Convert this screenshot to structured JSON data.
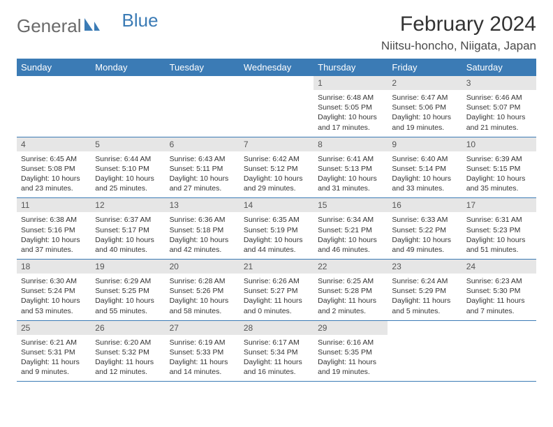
{
  "logo": {
    "text_general": "General",
    "text_blue": "Blue"
  },
  "header": {
    "month": "February 2024",
    "location": "Niitsu-honcho, Niigata, Japan"
  },
  "weekdays": [
    "Sunday",
    "Monday",
    "Tuesday",
    "Wednesday",
    "Thursday",
    "Friday",
    "Saturday"
  ],
  "colors": {
    "header_bg": "#3b7bb5",
    "header_text": "#ffffff",
    "daynum_bg": "#e6e6e6",
    "row_divider": "#3b7bb5",
    "logo_gray": "#6a6a6a",
    "logo_blue": "#3b7bb5"
  },
  "layout": {
    "first_weekday_index": 4,
    "days_in_month": 29
  },
  "days": {
    "1": {
      "sunrise": "6:48 AM",
      "sunset": "5:05 PM",
      "daylight": "10 hours and 17 minutes."
    },
    "2": {
      "sunrise": "6:47 AM",
      "sunset": "5:06 PM",
      "daylight": "10 hours and 19 minutes."
    },
    "3": {
      "sunrise": "6:46 AM",
      "sunset": "5:07 PM",
      "daylight": "10 hours and 21 minutes."
    },
    "4": {
      "sunrise": "6:45 AM",
      "sunset": "5:08 PM",
      "daylight": "10 hours and 23 minutes."
    },
    "5": {
      "sunrise": "6:44 AM",
      "sunset": "5:10 PM",
      "daylight": "10 hours and 25 minutes."
    },
    "6": {
      "sunrise": "6:43 AM",
      "sunset": "5:11 PM",
      "daylight": "10 hours and 27 minutes."
    },
    "7": {
      "sunrise": "6:42 AM",
      "sunset": "5:12 PM",
      "daylight": "10 hours and 29 minutes."
    },
    "8": {
      "sunrise": "6:41 AM",
      "sunset": "5:13 PM",
      "daylight": "10 hours and 31 minutes."
    },
    "9": {
      "sunrise": "6:40 AM",
      "sunset": "5:14 PM",
      "daylight": "10 hours and 33 minutes."
    },
    "10": {
      "sunrise": "6:39 AM",
      "sunset": "5:15 PM",
      "daylight": "10 hours and 35 minutes."
    },
    "11": {
      "sunrise": "6:38 AM",
      "sunset": "5:16 PM",
      "daylight": "10 hours and 37 minutes."
    },
    "12": {
      "sunrise": "6:37 AM",
      "sunset": "5:17 PM",
      "daylight": "10 hours and 40 minutes."
    },
    "13": {
      "sunrise": "6:36 AM",
      "sunset": "5:18 PM",
      "daylight": "10 hours and 42 minutes."
    },
    "14": {
      "sunrise": "6:35 AM",
      "sunset": "5:19 PM",
      "daylight": "10 hours and 44 minutes."
    },
    "15": {
      "sunrise": "6:34 AM",
      "sunset": "5:21 PM",
      "daylight": "10 hours and 46 minutes."
    },
    "16": {
      "sunrise": "6:33 AM",
      "sunset": "5:22 PM",
      "daylight": "10 hours and 49 minutes."
    },
    "17": {
      "sunrise": "6:31 AM",
      "sunset": "5:23 PM",
      "daylight": "10 hours and 51 minutes."
    },
    "18": {
      "sunrise": "6:30 AM",
      "sunset": "5:24 PM",
      "daylight": "10 hours and 53 minutes."
    },
    "19": {
      "sunrise": "6:29 AM",
      "sunset": "5:25 PM",
      "daylight": "10 hours and 55 minutes."
    },
    "20": {
      "sunrise": "6:28 AM",
      "sunset": "5:26 PM",
      "daylight": "10 hours and 58 minutes."
    },
    "21": {
      "sunrise": "6:26 AM",
      "sunset": "5:27 PM",
      "daylight": "11 hours and 0 minutes."
    },
    "22": {
      "sunrise": "6:25 AM",
      "sunset": "5:28 PM",
      "daylight": "11 hours and 2 minutes."
    },
    "23": {
      "sunrise": "6:24 AM",
      "sunset": "5:29 PM",
      "daylight": "11 hours and 5 minutes."
    },
    "24": {
      "sunrise": "6:23 AM",
      "sunset": "5:30 PM",
      "daylight": "11 hours and 7 minutes."
    },
    "25": {
      "sunrise": "6:21 AM",
      "sunset": "5:31 PM",
      "daylight": "11 hours and 9 minutes."
    },
    "26": {
      "sunrise": "6:20 AM",
      "sunset": "5:32 PM",
      "daylight": "11 hours and 12 minutes."
    },
    "27": {
      "sunrise": "6:19 AM",
      "sunset": "5:33 PM",
      "daylight": "11 hours and 14 minutes."
    },
    "28": {
      "sunrise": "6:17 AM",
      "sunset": "5:34 PM",
      "daylight": "11 hours and 16 minutes."
    },
    "29": {
      "sunrise": "6:16 AM",
      "sunset": "5:35 PM",
      "daylight": "11 hours and 19 minutes."
    }
  },
  "labels": {
    "sunrise": "Sunrise: ",
    "sunset": "Sunset: ",
    "daylight": "Daylight: "
  }
}
